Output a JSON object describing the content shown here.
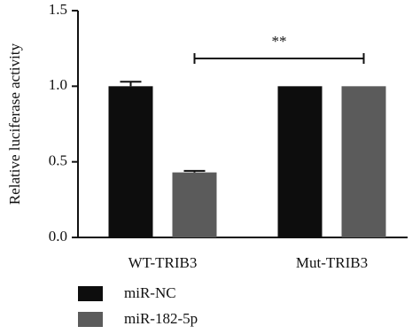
{
  "chart_data": {
    "type": "bar",
    "y_label": "Relative luciferase activity",
    "categories": [
      "WT-TRIB3",
      "Mut-TRIB3"
    ],
    "series": [
      {
        "name": "miR-NC",
        "color": "#0d0d0d",
        "values": [
          1.0,
          1.0
        ],
        "errors": [
          0.03,
          null
        ]
      },
      {
        "name": "miR-182-5p",
        "color": "#5b5b5b",
        "values": [
          0.43,
          1.0
        ],
        "errors": [
          0.01,
          null
        ]
      }
    ],
    "ylim": [
      0,
      1.5
    ],
    "yticks": [
      {
        "value": 0,
        "label": "0.0"
      },
      0.5,
      {
        "value": 1,
        "label": "1.0"
      },
      1.5
    ],
    "annotations": [
      {
        "text": "**"
      }
    ],
    "legend": "bottom-left"
  }
}
